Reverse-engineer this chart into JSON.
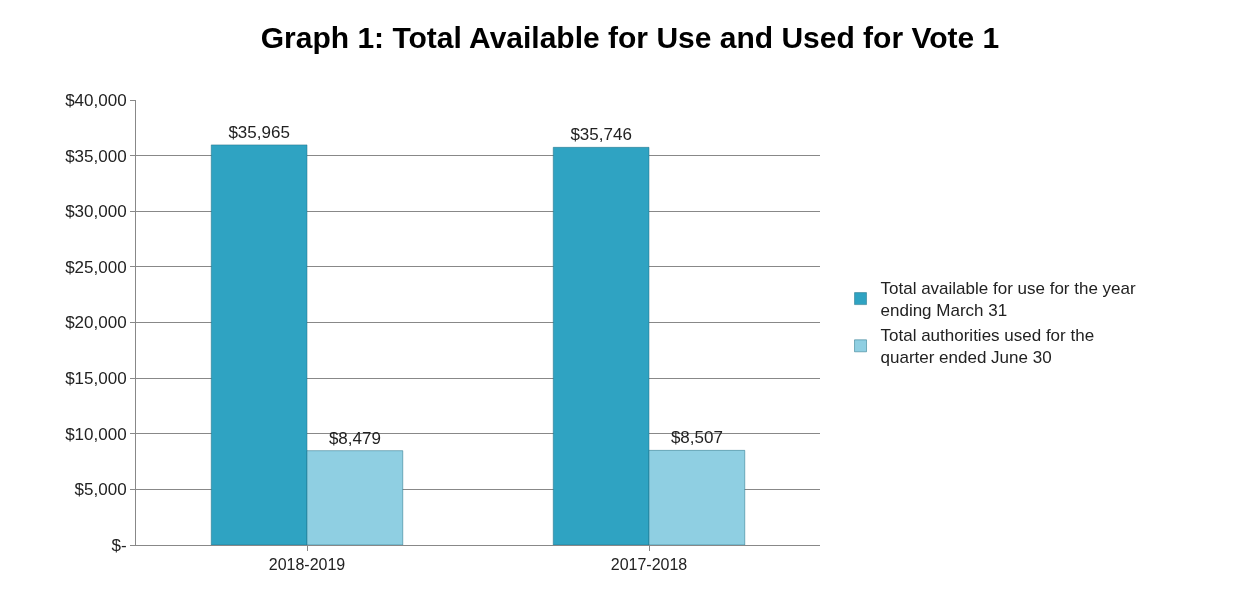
{
  "chart_data": {
    "type": "bar",
    "title": "Graph 1: Total Available for Use and Used for Vote 1",
    "categories": [
      "2018-2019",
      "2017-2018"
    ],
    "series": [
      {
        "name": "Total available for use for the year ending March 31",
        "color": "#2fa3c2",
        "values": [
          35965,
          35746
        ],
        "value_labels": [
          "$35,965",
          "$35,746"
        ]
      },
      {
        "name": "Total authorities used for the quarter ended June 30",
        "color": "#8fcfe2",
        "values": [
          8479,
          8507
        ],
        "value_labels": [
          "$8,479",
          "$8,507"
        ]
      }
    ],
    "ylim": [
      0,
      40000
    ],
    "yticks": [
      {
        "value": 0,
        "label": "$-"
      },
      {
        "value": 5000,
        "label": "$5,000"
      },
      {
        "value": 10000,
        "label": "$10,000"
      },
      {
        "value": 15000,
        "label": "$15,000"
      },
      {
        "value": 20000,
        "label": "$20,000"
      },
      {
        "value": 25000,
        "label": "$25,000"
      },
      {
        "value": 30000,
        "label": "$30,000"
      },
      {
        "value": 35000,
        "label": "$35,000"
      },
      {
        "value": 40000,
        "label": "$40,000"
      }
    ],
    "grid": "y",
    "legend": "right"
  }
}
